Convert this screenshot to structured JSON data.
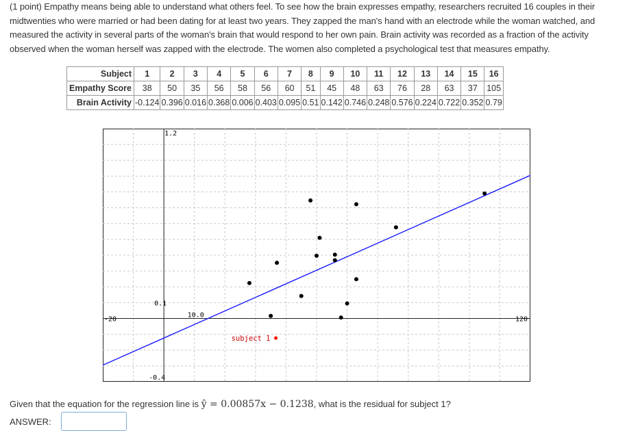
{
  "problem": {
    "text": "(1 point) Empathy means being able to understand what others feel. To see how the brain expresses empathy, researchers recruited 16 couples in their midtwenties who were married or had been dating for at least two years. They zapped the man's hand with an electrode while the woman watched, and measured the activity in several parts of the woman's brain that would respond to her own pain. Brain activity was recorded as a fraction of the activity observed when the woman herself was zapped with the electrode. The women also completed a psychological test that measures empathy."
  },
  "table": {
    "row_labels": [
      "Subject",
      "Empathy Score",
      "Brain Activity"
    ],
    "subjects": [
      "1",
      "2",
      "3",
      "4",
      "5",
      "6",
      "7",
      "8",
      "9",
      "10",
      "11",
      "12",
      "13",
      "14",
      "15",
      "16"
    ],
    "empathy": [
      "38",
      "50",
      "35",
      "56",
      "58",
      "56",
      "60",
      "51",
      "45",
      "48",
      "63",
      "76",
      "28",
      "63",
      "37",
      "105"
    ],
    "brain": [
      "-0.124",
      "0.396",
      "0.016",
      "0.368",
      "0.006",
      "0.403",
      "0.095",
      "0.51",
      "0.142",
      "0.746",
      "0.248",
      "0.576",
      "0.224",
      "0.722",
      "0.352",
      "0.79"
    ]
  },
  "chart_data": {
    "type": "scatter",
    "x": [
      38,
      50,
      35,
      56,
      58,
      56,
      60,
      51,
      45,
      48,
      63,
      76,
      28,
      63,
      37,
      105
    ],
    "y": [
      -0.124,
      0.396,
      0.016,
      0.368,
      0.006,
      0.403,
      0.095,
      0.51,
      0.142,
      0.746,
      0.248,
      0.576,
      0.224,
      0.722,
      0.352,
      0.79
    ],
    "xlim": [
      -20,
      120
    ],
    "ylim": [
      -0.4,
      1.2
    ],
    "grid": true,
    "regression": {
      "slope": 0.00857,
      "intercept": -0.1238,
      "color": "#1a1aff"
    },
    "point_color": "#000000",
    "highlight_color": "#ff0000",
    "tick_labels": {
      "x_min": "-20",
      "x_max": "120",
      "x_axis_value": "10.0",
      "y_max": "1.2",
      "y_mid": "0.1",
      "y_min": "-0.4"
    },
    "annotation": {
      "text": "subject 1",
      "color": "#cc0000"
    }
  },
  "question": {
    "before": "Given that the equation for the regression line is",
    "equation": "ŷ = 0.00857x − 0.1238",
    "after": ", what is the residual for subject 1?"
  },
  "answer": {
    "label": "ANSWER:",
    "value": ""
  }
}
